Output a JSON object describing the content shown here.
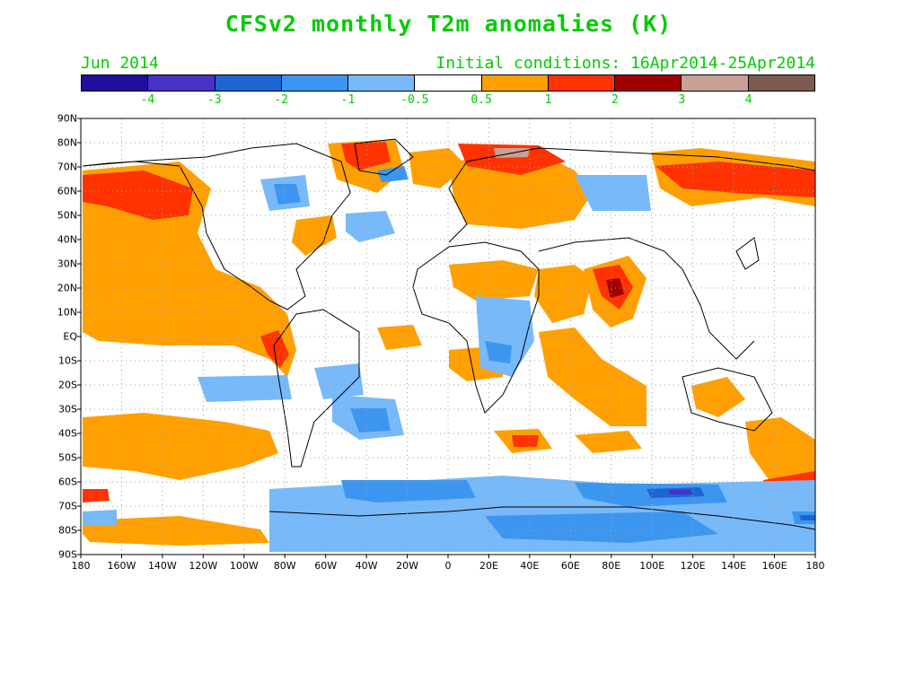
{
  "title": "CFSv2 monthly T2m anomalies (K)",
  "month": "Jun 2014",
  "init": "Initial conditions: 16Apr2014-25Apr2014",
  "colorbar": {
    "colors": [
      "#1e0f9e",
      "#4632c8",
      "#1e64d2",
      "#3c96f0",
      "#78b9fa",
      "#ffffff",
      "#ffa000",
      "#ff3200",
      "#a00000",
      "#c8a096",
      "#7d5a50"
    ],
    "labels": [
      "-4",
      "-3",
      "-2",
      "-1",
      "-0.5",
      "0.5",
      "1",
      "2",
      "3",
      "4"
    ]
  },
  "lat_labels": [
    "90N",
    "80N",
    "70N",
    "60N",
    "50N",
    "40N",
    "30N",
    "20N",
    "10N",
    "EQ",
    "10S",
    "20S",
    "30S",
    "40S",
    "50S",
    "60S",
    "70S",
    "80S",
    "90S"
  ],
  "lon_labels": [
    "180",
    "160W",
    "140W",
    "120W",
    "100W",
    "80W",
    "60W",
    "40W",
    "20W",
    "0",
    "20E",
    "40E",
    "60E",
    "80E",
    "100E",
    "120E",
    "140E",
    "160E",
    "180"
  ]
}
